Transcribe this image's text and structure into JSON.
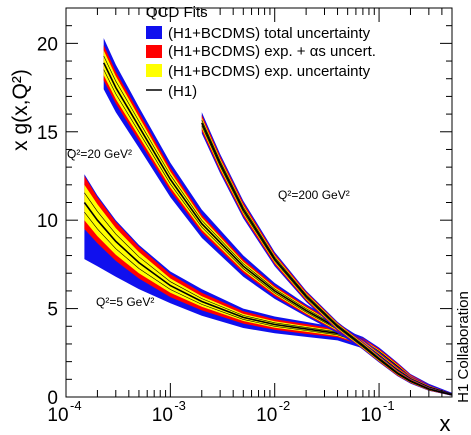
{
  "chart_data": {
    "type": "area",
    "title": "",
    "xlabel": "x",
    "ylabel": "x g(x,Q²)",
    "x_scale": "log",
    "xlim": [
      0.0001,
      0.5
    ],
    "ylim": [
      0,
      22
    ],
    "x_ticks": [
      {
        "value": 0.0001,
        "base": "10",
        "exp": "-4"
      },
      {
        "value": 0.001,
        "base": "10",
        "exp": "-3"
      },
      {
        "value": 0.01,
        "base": "10",
        "exp": "-2"
      },
      {
        "value": 0.1,
        "base": "10",
        "exp": "-1"
      }
    ],
    "y_ticks": [
      0,
      5,
      10,
      15,
      20
    ],
    "legend": {
      "title": "QCD Fits",
      "placement": "top-right",
      "entries": [
        {
          "label": "(H1+BCDMS) total uncertainty",
          "swatch": "blue"
        },
        {
          "label": "(H1+BCDMS) exp. + αs uncert.",
          "swatch": "red"
        },
        {
          "label": "(H1+BCDMS) exp. uncertainty",
          "swatch": "yellow"
        },
        {
          "label": "(H1)",
          "swatch": "line"
        }
      ]
    },
    "band_colors": {
      "total": "#1010ee",
      "exp_alphas": "#ff0000",
      "exp": "#ffff00",
      "line": "#000000"
    },
    "series": [
      {
        "label": "Q²=5 GeV²",
        "x": [
          0.00015,
          0.0002,
          0.0003,
          0.0005,
          0.001,
          0.002,
          0.005,
          0.01,
          0.02,
          0.04,
          0.07,
          0.1,
          0.15,
          0.2,
          0.3,
          0.5
        ],
        "central": [
          11.0,
          10.0,
          8.8,
          7.6,
          6.3,
          5.4,
          4.5,
          4.1,
          3.85,
          3.6,
          3.1,
          2.5,
          1.7,
          1.1,
          0.6,
          0.15
        ],
        "exp_half": [
          1.0,
          0.9,
          0.75,
          0.6,
          0.4,
          0.3,
          0.2,
          0.18,
          0.16,
          0.15,
          0.15,
          0.15,
          0.12,
          0.1,
          0.07,
          0.03
        ],
        "alphas_half": [
          1.5,
          1.3,
          1.1,
          0.9,
          0.65,
          0.5,
          0.35,
          0.3,
          0.28,
          0.22,
          0.22,
          0.22,
          0.2,
          0.16,
          0.1,
          0.05
        ],
        "total_up": [
          1.6,
          1.4,
          1.2,
          1.0,
          0.8,
          0.7,
          0.5,
          0.45,
          0.4,
          0.35,
          0.3,
          0.3,
          0.25,
          0.2,
          0.15,
          0.08
        ],
        "total_down": [
          3.2,
          2.6,
          2.0,
          1.5,
          1.0,
          0.8,
          0.6,
          0.5,
          0.45,
          0.4,
          0.35,
          0.3,
          0.25,
          0.2,
          0.15,
          0.08
        ]
      },
      {
        "label": "Q²=20 GeV²",
        "x": [
          0.00023,
          0.0003,
          0.0005,
          0.001,
          0.002,
          0.005,
          0.01,
          0.02,
          0.04,
          0.07,
          0.1,
          0.15,
          0.2,
          0.3,
          0.5
        ],
        "central": [
          18.9,
          17.5,
          15.3,
          12.3,
          9.8,
          7.4,
          6.0,
          4.9,
          3.9,
          3.0,
          2.3,
          1.5,
          1.0,
          0.55,
          0.15
        ],
        "exp_half": [
          0.7,
          0.65,
          0.55,
          0.45,
          0.35,
          0.25,
          0.2,
          0.18,
          0.15,
          0.15,
          0.15,
          0.12,
          0.1,
          0.07,
          0.03
        ],
        "alphas_half": [
          1.0,
          0.9,
          0.8,
          0.65,
          0.5,
          0.38,
          0.3,
          0.25,
          0.2,
          0.2,
          0.2,
          0.18,
          0.14,
          0.1,
          0.05
        ],
        "total_up": [
          1.4,
          1.3,
          1.1,
          0.95,
          0.8,
          0.6,
          0.45,
          0.35,
          0.3,
          0.28,
          0.25,
          0.22,
          0.18,
          0.14,
          0.08
        ],
        "total_down": [
          1.5,
          1.4,
          1.2,
          1.0,
          0.8,
          0.6,
          0.45,
          0.35,
          0.3,
          0.28,
          0.25,
          0.22,
          0.18,
          0.14,
          0.08
        ]
      },
      {
        "label": "Q²=200 GeV²",
        "x": [
          0.002,
          0.003,
          0.005,
          0.01,
          0.02,
          0.04,
          0.07,
          0.1,
          0.15,
          0.2,
          0.3,
          0.5
        ],
        "central": [
          15.5,
          13.2,
          10.6,
          7.8,
          5.7,
          4.0,
          2.9,
          2.15,
          1.35,
          0.9,
          0.45,
          0.12
        ],
        "exp_half": [
          0.3,
          0.28,
          0.25,
          0.2,
          0.17,
          0.15,
          0.14,
          0.12,
          0.1,
          0.08,
          0.06,
          0.03
        ],
        "alphas_half": [
          0.45,
          0.42,
          0.38,
          0.3,
          0.25,
          0.2,
          0.18,
          0.16,
          0.14,
          0.11,
          0.08,
          0.04
        ],
        "total_up": [
          0.6,
          0.55,
          0.5,
          0.4,
          0.32,
          0.26,
          0.22,
          0.2,
          0.17,
          0.14,
          0.1,
          0.05
        ],
        "total_down": [
          0.6,
          0.55,
          0.5,
          0.4,
          0.32,
          0.26,
          0.22,
          0.2,
          0.17,
          0.14,
          0.1,
          0.05
        ]
      }
    ],
    "annotations": [
      {
        "text": "Q²=20 GeV²",
        "near": "Q²=20 GeV² band, upper left"
      },
      {
        "text": "Q²=5 GeV²",
        "near": "Q²=5 GeV² band, lower middle"
      },
      {
        "text": "Q²=200 GeV²",
        "near": "Q²=200 GeV² band, right of center"
      }
    ],
    "side_label": "H1 Collaboration",
    "grid": false
  }
}
